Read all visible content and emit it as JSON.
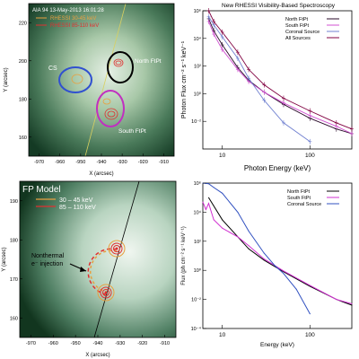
{
  "chart_data": [
    {
      "panel": "top-left",
      "type": "image",
      "title": "AIA 94  13-May-2013 16:01:28",
      "legend": [
        {
          "label": "RHESSI 30-45 keV",
          "color": "#e8a040"
        },
        {
          "label": "RHESSI 85-110 keV",
          "color": "#e03030"
        }
      ],
      "xlabel": "X (arcsec)",
      "ylabel": "Y (arcsec)",
      "xticks": [
        "-970",
        "-960",
        "-950",
        "-940",
        "-930",
        "-920",
        "-910"
      ],
      "yticks": [
        "160",
        "180",
        "200",
        "220"
      ],
      "annotations": [
        "CS",
        "North FtPt",
        "South FtPt"
      ]
    },
    {
      "panel": "top-right",
      "type": "line",
      "title": "New RHESSI Visibility-Based Spectroscopy",
      "xlabel": "Photon Energy (keV)",
      "ylabel": "Photon Flux cm⁻² s⁻¹ keV⁻¹",
      "xscale": "log",
      "yscale": "log",
      "xlim": [
        6,
        300
      ],
      "ylim": [
        0.001,
        1000000
      ],
      "xticks": [
        "10",
        "100"
      ],
      "yticks": [
        "10⁻²",
        "10⁰",
        "10²",
        "10⁴",
        "10⁶"
      ],
      "legend_position": "top-right",
      "series": [
        {
          "name": "North FtPt",
          "color": "#2a0a2a",
          "x": [
            7,
            8,
            10,
            15,
            20,
            30,
            50,
            100,
            200,
            300
          ],
          "values": [
            300000,
            50000,
            6000,
            200,
            30,
            5,
            0.8,
            0.1,
            0.02,
            0.01
          ]
        },
        {
          "name": "South FtPt",
          "color": "#d050d0",
          "x": [
            7,
            8,
            10,
            15,
            20,
            30,
            50,
            100,
            200,
            300
          ],
          "values": [
            200000,
            30000,
            3000,
            150,
            25,
            5,
            1,
            0.15,
            0.03,
            0.01
          ]
        },
        {
          "name": "Coronal Source",
          "color": "#7080d0",
          "x": [
            7,
            8,
            10,
            15,
            20,
            30,
            50,
            100
          ],
          "values": [
            400000,
            120000,
            20000,
            800,
            40,
            1.5,
            0.05,
            0.003
          ]
        },
        {
          "name": "All Sources",
          "color": "#800040",
          "x": [
            7,
            8,
            10,
            15,
            20,
            30,
            50,
            100,
            200,
            300
          ],
          "values": [
            1000000,
            200000,
            40000,
            2000,
            150,
            15,
            2,
            0.3,
            0.05,
            0.02
          ]
        }
      ]
    },
    {
      "panel": "bottom-left",
      "type": "image",
      "title": "FP Model",
      "legend": [
        {
          "label": "30 – 45 keV",
          "color": "#e8a040"
        },
        {
          "label": "85 – 110 keV",
          "color": "#e03030"
        }
      ],
      "xlabel": "X (arcsec)",
      "ylabel": "Y (arcsec)",
      "xticks": [
        "-970",
        "-960",
        "-950",
        "-940",
        "-930",
        "-920",
        "-910"
      ],
      "yticks": [
        "160",
        "170",
        "180",
        "190"
      ],
      "annotations": [
        "Nonthermal",
        "e⁻ injection"
      ]
    },
    {
      "panel": "bottom-right",
      "type": "line",
      "xlabel": "Energy (keV)",
      "ylabel": "Flux (ph cm⁻² s⁻¹ keV⁻¹)",
      "xscale": "log",
      "yscale": "log",
      "xlim": [
        6,
        300
      ],
      "ylim": [
        0.0001,
        1000000
      ],
      "xticks": [
        "10",
        "100"
      ],
      "yticks": [
        "10⁻⁴",
        "10⁻²",
        "10⁰",
        "10²",
        "10⁴",
        "10⁶"
      ],
      "legend_position": "top-right",
      "series": [
        {
          "name": "North FtPt",
          "color": "#000000",
          "x": [
            7,
            10,
            20,
            30,
            50,
            100,
            200,
            300
          ],
          "values": [
            100000,
            3000,
            30,
            5,
            0.8,
            0.08,
            0.01,
            0.004
          ]
        },
        {
          "name": "South FtPt",
          "color": "#d030d0",
          "x": [
            6,
            6.5,
            7,
            7.5,
            8,
            10,
            15,
            20,
            30,
            50,
            100,
            200,
            300
          ],
          "values": [
            50000,
            15000,
            40000,
            10000,
            3000,
            800,
            200,
            50,
            6,
            0.9,
            0.09,
            0.01,
            0.005
          ]
        },
        {
          "name": "Coronal Source",
          "color": "#3050c0",
          "x": [
            6,
            7,
            8,
            10,
            15,
            20,
            30,
            40,
            50,
            70,
            100
          ],
          "values": [
            1000000,
            900000,
            500000,
            200000,
            10000,
            500,
            15,
            2,
            0.6,
            0.05,
            0.001
          ]
        }
      ]
    }
  ]
}
